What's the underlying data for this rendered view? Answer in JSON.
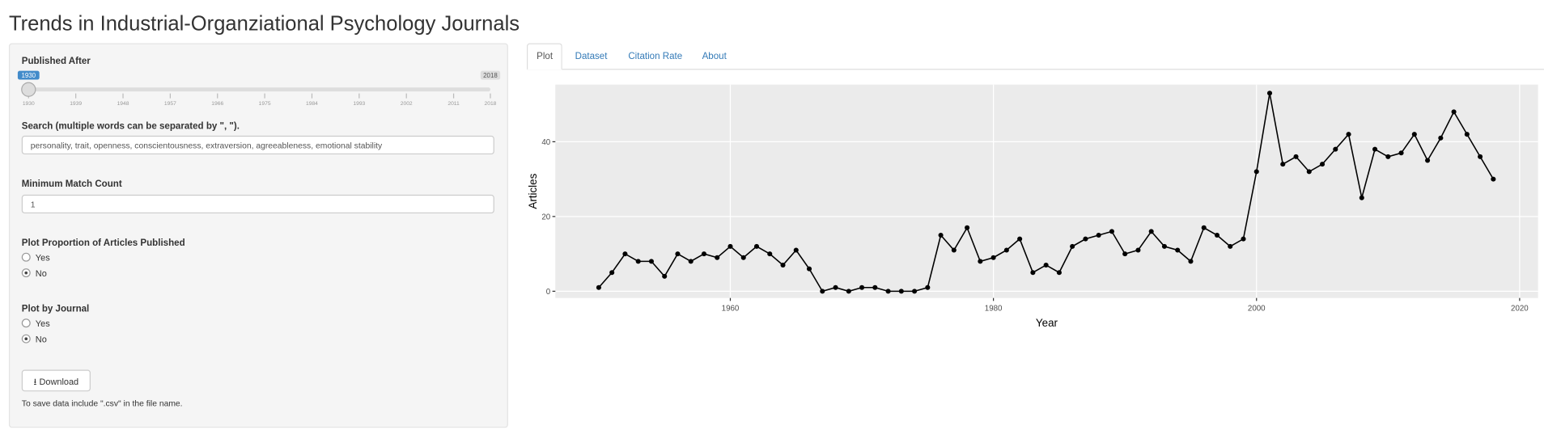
{
  "header": {
    "title": "Trends in Industrial-Organziational Psychology Journals"
  },
  "sidebar": {
    "slider": {
      "label": "Published After",
      "min": 1930,
      "max": 2018,
      "value": 1930,
      "ticks": [
        1930,
        1939,
        1948,
        1957,
        1966,
        1975,
        1984,
        1993,
        2002,
        2011,
        2018
      ]
    },
    "search": {
      "label": "Search (multiple words can be separated by \", \").",
      "value": "personality, trait, openness, conscientousness, extraversion, agreeableness, emotional stability"
    },
    "min_count": {
      "label": "Minimum Match Count",
      "value": "1"
    },
    "proportion": {
      "label": "Plot Proportion of Articles Published",
      "options": [
        "Yes",
        "No"
      ],
      "selected": "No"
    },
    "by_journal": {
      "label": "Plot by Journal",
      "options": [
        "Yes",
        "No"
      ],
      "selected": "No"
    },
    "download": "Download",
    "note": "To save data include \".csv\" in the file name."
  },
  "tabs": {
    "items": [
      "Plot",
      "Dataset",
      "Citation Rate",
      "About"
    ],
    "active": "Plot"
  },
  "chart_data": {
    "type": "line",
    "x_label": "Year",
    "y_label": "Articles",
    "color": "#000000",
    "x": [
      1950,
      1951,
      1952,
      1953,
      1954,
      1955,
      1956,
      1957,
      1958,
      1959,
      1960,
      1961,
      1962,
      1963,
      1964,
      1965,
      1966,
      1967,
      1968,
      1969,
      1970,
      1971,
      1972,
      1973,
      1974,
      1975,
      1976,
      1977,
      1978,
      1979,
      1980,
      1981,
      1982,
      1983,
      1984,
      1985,
      1986,
      1987,
      1988,
      1989,
      1990,
      1991,
      1992,
      1993,
      1994,
      1995,
      1996,
      1997,
      1998,
      1999,
      2000,
      2001,
      2002,
      2003,
      2004,
      2005,
      2006,
      2007,
      2008,
      2009,
      2010,
      2011,
      2012,
      2013,
      2014,
      2015,
      2016,
      2017,
      2018
    ],
    "values": [
      1,
      5,
      10,
      8,
      8,
      4,
      10,
      8,
      10,
      9,
      12,
      9,
      12,
      10,
      7,
      11,
      6,
      0,
      1,
      0,
      1,
      1,
      0,
      0,
      0,
      1,
      15,
      11,
      17,
      8,
      9,
      11,
      14,
      5,
      7,
      5,
      12,
      14,
      15,
      16,
      10,
      11,
      16,
      12,
      11,
      8,
      17,
      15,
      12,
      14,
      32,
      53,
      34,
      36,
      32,
      34,
      38,
      42,
      25,
      38,
      36,
      37,
      42,
      35,
      41,
      48,
      42,
      36,
      30
    ],
    "xlim": [
      1946.7,
      2021.4
    ],
    "ylim": [
      -1.8,
      55.3
    ],
    "xticks": [
      1960,
      1980,
      2000,
      2020
    ],
    "yticks": [
      0,
      20,
      40
    ],
    "grid": true
  }
}
